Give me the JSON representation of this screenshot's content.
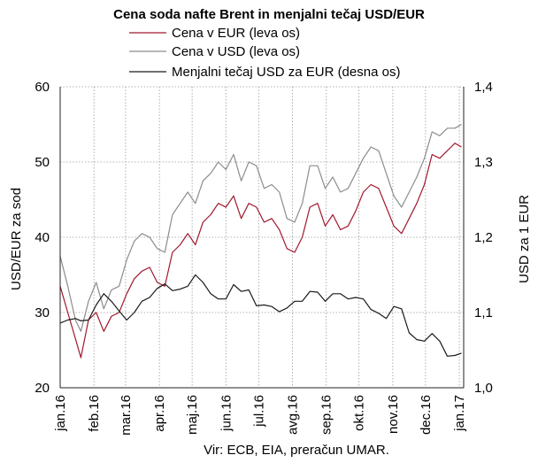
{
  "chart_data": {
    "type": "line",
    "title": "Cena soda nafte Brent in menjalni tečaj USD/EUR",
    "source": "Vir: ECB, EIA, preračun UMAR.",
    "legend_position": "top",
    "x_tick_labels": [
      "jan.16",
      "feb.16",
      "mar.16",
      "apr.16",
      "maj.16",
      "jun.16",
      "jul.16",
      "avg.16",
      "sep.16",
      "okt.16",
      "nov.16",
      "dec.16",
      "jan.17"
    ],
    "x_range": [
      "2016-01-01",
      "2017-01-05"
    ],
    "y_left": {
      "label": "USD/EUR za sod",
      "range": [
        20,
        60
      ],
      "ticks": [
        "20",
        "30",
        "40",
        "50",
        "60"
      ]
    },
    "y_right": {
      "label": "USD za 1 EUR",
      "range": [
        1.0,
        1.4
      ],
      "ticks": [
        "1,0",
        "1,1",
        "1,2",
        "1,3",
        "1,4"
      ]
    },
    "grid": true,
    "series": [
      {
        "name": "Cena v EUR (leva os)",
        "axis": "left",
        "color": "#a0182e",
        "points": [
          [
            "2016-01-01",
            33.5
          ],
          [
            "2016-01-08",
            30.0
          ],
          [
            "2016-01-15",
            26.5
          ],
          [
            "2016-01-20",
            24.0
          ],
          [
            "2016-01-27",
            29.0
          ],
          [
            "2016-02-03",
            30.0
          ],
          [
            "2016-02-10",
            27.5
          ],
          [
            "2016-02-17",
            29.5
          ],
          [
            "2016-02-24",
            30.0
          ],
          [
            "2016-03-02",
            32.5
          ],
          [
            "2016-03-09",
            34.5
          ],
          [
            "2016-03-16",
            35.5
          ],
          [
            "2016-03-23",
            36.0
          ],
          [
            "2016-03-30",
            34.0
          ],
          [
            "2016-04-06",
            33.5
          ],
          [
            "2016-04-13",
            38.0
          ],
          [
            "2016-04-20",
            39.0
          ],
          [
            "2016-04-27",
            40.5
          ],
          [
            "2016-05-04",
            39.0
          ],
          [
            "2016-05-11",
            42.0
          ],
          [
            "2016-05-18",
            43.0
          ],
          [
            "2016-05-25",
            44.5
          ],
          [
            "2016-06-01",
            44.0
          ],
          [
            "2016-06-08",
            45.5
          ],
          [
            "2016-06-15",
            42.5
          ],
          [
            "2016-06-22",
            44.5
          ],
          [
            "2016-06-29",
            44.0
          ],
          [
            "2016-07-06",
            42.0
          ],
          [
            "2016-07-13",
            42.5
          ],
          [
            "2016-07-20",
            41.0
          ],
          [
            "2016-07-27",
            38.5
          ],
          [
            "2016-08-03",
            38.0
          ],
          [
            "2016-08-10",
            40.0
          ],
          [
            "2016-08-17",
            44.0
          ],
          [
            "2016-08-24",
            44.5
          ],
          [
            "2016-08-31",
            41.5
          ],
          [
            "2016-09-07",
            43.0
          ],
          [
            "2016-09-14",
            41.0
          ],
          [
            "2016-09-21",
            41.5
          ],
          [
            "2016-09-28",
            43.5
          ],
          [
            "2016-10-05",
            46.0
          ],
          [
            "2016-10-12",
            47.0
          ],
          [
            "2016-10-19",
            46.5
          ],
          [
            "2016-10-26",
            44.0
          ],
          [
            "2016-11-02",
            41.5
          ],
          [
            "2016-11-09",
            40.5
          ],
          [
            "2016-11-16",
            42.5
          ],
          [
            "2016-11-23",
            44.5
          ],
          [
            "2016-11-30",
            47.0
          ],
          [
            "2016-12-07",
            51.0
          ],
          [
            "2016-12-14",
            50.5
          ],
          [
            "2016-12-21",
            51.5
          ],
          [
            "2016-12-28",
            52.5
          ],
          [
            "2017-01-03",
            52.0
          ]
        ]
      },
      {
        "name": "Cena v USD (leva os)",
        "axis": "left",
        "color": "#8c8c8c",
        "points": [
          [
            "2016-01-01",
            37.5
          ],
          [
            "2016-01-08",
            33.5
          ],
          [
            "2016-01-15",
            29.0
          ],
          [
            "2016-01-20",
            27.5
          ],
          [
            "2016-01-27",
            31.5
          ],
          [
            "2016-02-03",
            34.0
          ],
          [
            "2016-02-10",
            30.5
          ],
          [
            "2016-02-17",
            33.0
          ],
          [
            "2016-02-24",
            33.5
          ],
          [
            "2016-03-02",
            37.0
          ],
          [
            "2016-03-09",
            39.5
          ],
          [
            "2016-03-16",
            40.5
          ],
          [
            "2016-03-23",
            40.0
          ],
          [
            "2016-03-30",
            38.5
          ],
          [
            "2016-04-06",
            38.0
          ],
          [
            "2016-04-13",
            43.0
          ],
          [
            "2016-04-20",
            44.5
          ],
          [
            "2016-04-27",
            46.0
          ],
          [
            "2016-05-04",
            44.5
          ],
          [
            "2016-05-11",
            47.5
          ],
          [
            "2016-05-18",
            48.5
          ],
          [
            "2016-05-25",
            50.0
          ],
          [
            "2016-06-01",
            49.0
          ],
          [
            "2016-06-08",
            51.0
          ],
          [
            "2016-06-15",
            47.5
          ],
          [
            "2016-06-22",
            50.0
          ],
          [
            "2016-06-29",
            49.5
          ],
          [
            "2016-07-06",
            46.5
          ],
          [
            "2016-07-13",
            47.0
          ],
          [
            "2016-07-20",
            46.0
          ],
          [
            "2016-07-27",
            42.5
          ],
          [
            "2016-08-03",
            42.0
          ],
          [
            "2016-08-10",
            44.5
          ],
          [
            "2016-08-17",
            49.5
          ],
          [
            "2016-08-24",
            49.5
          ],
          [
            "2016-08-31",
            46.5
          ],
          [
            "2016-09-07",
            48.0
          ],
          [
            "2016-09-14",
            46.0
          ],
          [
            "2016-09-21",
            46.5
          ],
          [
            "2016-09-28",
            48.5
          ],
          [
            "2016-10-05",
            50.5
          ],
          [
            "2016-10-12",
            52.0
          ],
          [
            "2016-10-19",
            51.5
          ],
          [
            "2016-10-26",
            48.5
          ],
          [
            "2016-11-02",
            45.5
          ],
          [
            "2016-11-09",
            44.0
          ],
          [
            "2016-11-16",
            46.0
          ],
          [
            "2016-11-23",
            48.0
          ],
          [
            "2016-11-30",
            50.5
          ],
          [
            "2016-12-07",
            54.0
          ],
          [
            "2016-12-14",
            53.5
          ],
          [
            "2016-12-21",
            54.5
          ],
          [
            "2016-12-28",
            54.5
          ],
          [
            "2017-01-03",
            55.0
          ]
        ]
      },
      {
        "name": "Menjalni tečaj USD za EUR (desna os)",
        "axis": "right",
        "color": "#1a1a1a",
        "points": [
          [
            "2016-01-01",
            1.086
          ],
          [
            "2016-01-08",
            1.09
          ],
          [
            "2016-01-15",
            1.092
          ],
          [
            "2016-01-20",
            1.089
          ],
          [
            "2016-01-27",
            1.09
          ],
          [
            "2016-02-03",
            1.11
          ],
          [
            "2016-02-10",
            1.125
          ],
          [
            "2016-02-17",
            1.115
          ],
          [
            "2016-02-24",
            1.102
          ],
          [
            "2016-03-02",
            1.09
          ],
          [
            "2016-03-09",
            1.1
          ],
          [
            "2016-03-16",
            1.115
          ],
          [
            "2016-03-23",
            1.12
          ],
          [
            "2016-03-30",
            1.132
          ],
          [
            "2016-04-06",
            1.138
          ],
          [
            "2016-04-13",
            1.129
          ],
          [
            "2016-04-20",
            1.131
          ],
          [
            "2016-04-27",
            1.135
          ],
          [
            "2016-05-04",
            1.15
          ],
          [
            "2016-05-11",
            1.14
          ],
          [
            "2016-05-18",
            1.125
          ],
          [
            "2016-05-25",
            1.118
          ],
          [
            "2016-06-01",
            1.118
          ],
          [
            "2016-06-08",
            1.137
          ],
          [
            "2016-06-15",
            1.128
          ],
          [
            "2016-06-22",
            1.13
          ],
          [
            "2016-06-29",
            1.109
          ],
          [
            "2016-07-06",
            1.11
          ],
          [
            "2016-07-13",
            1.108
          ],
          [
            "2016-07-20",
            1.101
          ],
          [
            "2016-07-27",
            1.106
          ],
          [
            "2016-08-03",
            1.115
          ],
          [
            "2016-08-10",
            1.115
          ],
          [
            "2016-08-17",
            1.128
          ],
          [
            "2016-08-24",
            1.127
          ],
          [
            "2016-08-31",
            1.115
          ],
          [
            "2016-09-07",
            1.125
          ],
          [
            "2016-09-14",
            1.125
          ],
          [
            "2016-09-21",
            1.118
          ],
          [
            "2016-09-28",
            1.12
          ],
          [
            "2016-10-05",
            1.118
          ],
          [
            "2016-10-12",
            1.104
          ],
          [
            "2016-10-19",
            1.099
          ],
          [
            "2016-10-26",
            1.092
          ],
          [
            "2016-11-02",
            1.108
          ],
          [
            "2016-11-09",
            1.105
          ],
          [
            "2016-11-16",
            1.073
          ],
          [
            "2016-11-23",
            1.064
          ],
          [
            "2016-11-30",
            1.062
          ],
          [
            "2016-12-07",
            1.072
          ],
          [
            "2016-12-14",
            1.062
          ],
          [
            "2016-12-21",
            1.042
          ],
          [
            "2016-12-28",
            1.043
          ],
          [
            "2017-01-03",
            1.046
          ]
        ]
      }
    ]
  }
}
